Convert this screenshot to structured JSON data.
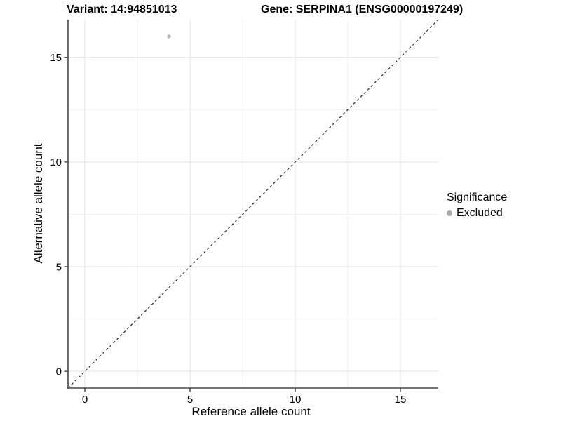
{
  "titles": {
    "variant": "Variant: 14:94851013",
    "gene": "Gene: SERPINA1 (ENSG00000197249)"
  },
  "legend": {
    "title": "Significance",
    "items": [
      {
        "label": "Excluded",
        "color": "#ababab"
      }
    ]
  },
  "chart_data": {
    "type": "scatter",
    "title": "Variant: 14:94851013 — Gene: SERPINA1 (ENSG00000197249)",
    "xlabel": "Reference allele count",
    "ylabel": "Alternative allele count",
    "xlim": [
      -0.8,
      16.8
    ],
    "ylim": [
      -0.8,
      16.8
    ],
    "x_ticks": [
      0,
      5,
      10,
      15
    ],
    "y_ticks": [
      0,
      5,
      10,
      15
    ],
    "x_minor_ticks": [
      2.5,
      7.5,
      12.5
    ],
    "y_minor_ticks": [
      2.5,
      7.5,
      12.5
    ],
    "grid": true,
    "legend_position": "right",
    "series": [
      {
        "name": "Excluded",
        "color": "#b5b5b5",
        "points": [
          {
            "x": 4,
            "y": 16
          }
        ]
      }
    ],
    "reference_line": {
      "type": "identity",
      "style": "dashed",
      "from": [
        -0.8,
        -0.8
      ],
      "to": [
        16.8,
        16.8
      ]
    }
  },
  "colors": {
    "grid_major": "#e3e3e3",
    "grid_minor": "#f0f0f0",
    "axis_line": "#474747",
    "tick": "#474747",
    "dashed_line": "#1a1a1a",
    "text": "#000000"
  }
}
